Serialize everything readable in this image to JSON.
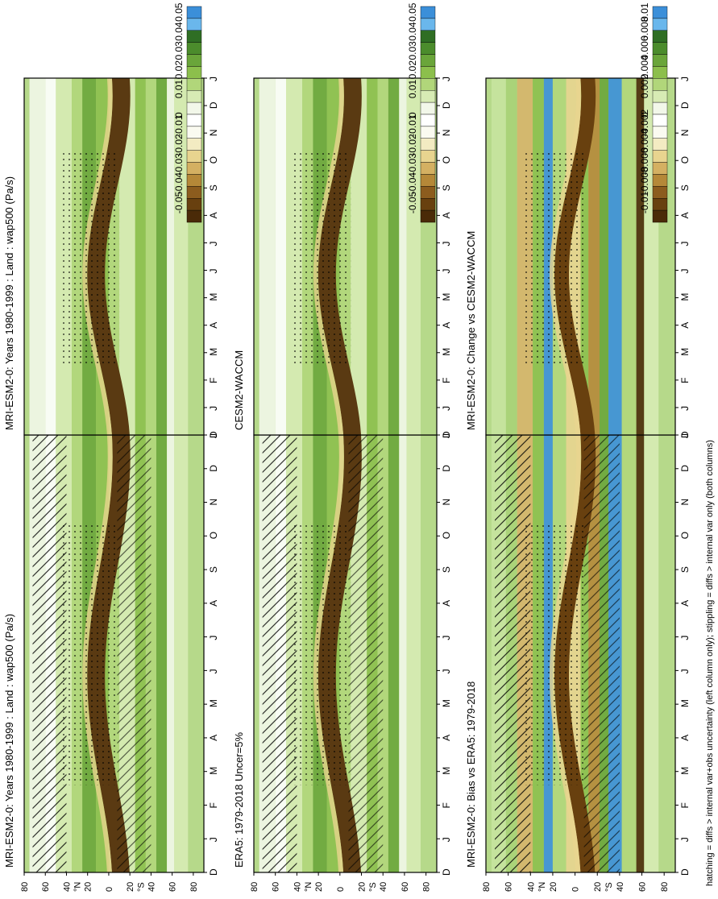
{
  "footnote": "hatching = diffs > internal var+obs uncertainty (left column only); stippling = diffs > internal var only (both columns)",
  "colorbars": {
    "main": {
      "labels": [
        "0.05",
        "0.04",
        "0.03",
        "0.02",
        "0.01",
        "0",
        "-0.01",
        "-0.02",
        "-0.03",
        "-0.04",
        "-0.05"
      ],
      "colors": [
        "#3b8fd9",
        "#6ab7ec",
        "#2f6e24",
        "#4b8c2c",
        "#6aa53a",
        "#8cbf4c",
        "#b1d67a",
        "#d7ebb4",
        "#f2f7e9",
        "#ffffff",
        "#fafaf0",
        "#f3ebc2",
        "#e8d48f",
        "#d4b062",
        "#b58838",
        "#8c5c1e",
        "#68400f",
        "#4a2a08"
      ]
    },
    "diff": {
      "labels": [
        "0.01",
        "0.008",
        "0.006",
        "0.004",
        "0.002",
        "0",
        "-0.002",
        "-0.004",
        "-0.006",
        "-0.008",
        "-0.01"
      ],
      "colors": [
        "#3b8fd9",
        "#6ab7ec",
        "#2f6e24",
        "#4b8c2c",
        "#6aa53a",
        "#8cbf4c",
        "#b1d67a",
        "#d7ebb4",
        "#f2f7e9",
        "#ffffff",
        "#fafaf0",
        "#f3ebc2",
        "#e8d48f",
        "#d4b062",
        "#b58838",
        "#8c5c1e",
        "#68400f",
        "#4a2a08"
      ]
    }
  },
  "axes": {
    "month_ticks": [
      "D",
      "J",
      "F",
      "M",
      "A",
      "M",
      "J",
      "J",
      "A",
      "S",
      "O",
      "N",
      "D",
      "J"
    ],
    "lat_ticks": [
      "80",
      "60",
      "40",
      "20",
      "0",
      "20",
      "40",
      "60",
      "80"
    ],
    "lat_hemisphere_labels": [
      "°N",
      "°S"
    ]
  },
  "chart_data": [
    {
      "type": "heatmap",
      "title": "MRI-ESM2-0: Years 1980-1999 : Land : wap500 (Pa/s)",
      "x": [
        "D",
        "J",
        "F",
        "M",
        "A",
        "M",
        "J",
        "J",
        "A",
        "S",
        "O",
        "N",
        "D",
        "J"
      ],
      "y": [
        "80N",
        "60N",
        "40N",
        "20N",
        "0",
        "20S",
        "40S",
        "60S",
        "80S"
      ],
      "colorbar": "main",
      "hatching": true,
      "stippling": true
    },
    {
      "type": "heatmap",
      "title": "MRI-ESM2-0: Years 1980-1999 : Land : wap500 (Pa/s)",
      "x": [
        "D",
        "J",
        "F",
        "M",
        "A",
        "M",
        "J",
        "J",
        "A",
        "S",
        "O",
        "N",
        "D",
        "J"
      ],
      "y": [
        "80N",
        "60N",
        "40N",
        "20N",
        "0",
        "20S",
        "40S",
        "60S",
        "80S"
      ],
      "colorbar": "main",
      "hatching": false,
      "stippling": true
    },
    {
      "type": "heatmap",
      "title": "ERA5: 1979-2018 Uncer=5%",
      "x": [
        "D",
        "J",
        "F",
        "M",
        "A",
        "M",
        "J",
        "J",
        "A",
        "S",
        "O",
        "N",
        "D",
        "J"
      ],
      "y": [
        "80N",
        "60N",
        "40N",
        "20N",
        "0",
        "20S",
        "40S",
        "60S",
        "80S"
      ],
      "colorbar": "main",
      "hatching": true,
      "stippling": true
    },
    {
      "type": "heatmap",
      "title": "CESM2-WACCM",
      "x": [
        "D",
        "J",
        "F",
        "M",
        "A",
        "M",
        "J",
        "J",
        "A",
        "S",
        "O",
        "N",
        "D",
        "J"
      ],
      "y": [
        "80N",
        "60N",
        "40N",
        "20N",
        "0",
        "20S",
        "40S",
        "60S",
        "80S"
      ],
      "colorbar": "main",
      "hatching": false,
      "stippling": true
    },
    {
      "type": "heatmap",
      "title": "MRI-ESM2-0: Bias vs ERA5: 1979-2018",
      "x": [
        "D",
        "J",
        "F",
        "M",
        "A",
        "M",
        "J",
        "J",
        "A",
        "S",
        "O",
        "N",
        "D",
        "J"
      ],
      "y": [
        "80N",
        "60N",
        "40N",
        "20N",
        "0",
        "20S",
        "40S",
        "60S",
        "80S"
      ],
      "colorbar": "diff",
      "hatching": true,
      "stippling": true
    },
    {
      "type": "heatmap",
      "title": "MRI-ESM2-0: Change vs CESM2-WACCM",
      "x": [
        "D",
        "J",
        "F",
        "M",
        "A",
        "M",
        "J",
        "J",
        "A",
        "S",
        "O",
        "N",
        "D",
        "J"
      ],
      "y": [
        "80N",
        "60N",
        "40N",
        "20N",
        "0",
        "20S",
        "40S",
        "60S",
        "80S"
      ],
      "colorbar": "diff",
      "hatching": false,
      "stippling": true
    }
  ]
}
